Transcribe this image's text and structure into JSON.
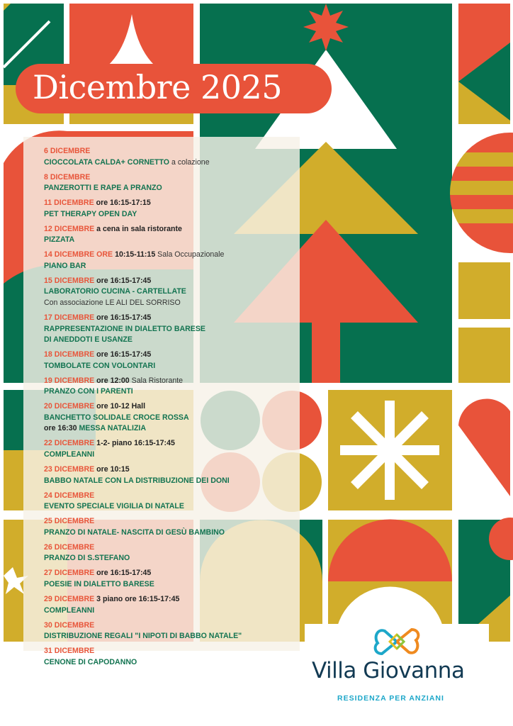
{
  "header": {
    "title": "Dicembre 2025"
  },
  "colors": {
    "green": "#06704f",
    "red": "#e8533a",
    "gold": "#d1ad2b",
    "text_green": "#137451"
  },
  "events": [
    {
      "lines": [
        [
          {
            "t": "6 DICEMBRE",
            "s": "date"
          }
        ],
        [
          {
            "t": "CIOCCOLATA CALDA+ CORNETTO",
            "s": "title"
          },
          {
            "t": " a colazione",
            "s": "light"
          }
        ]
      ]
    },
    {
      "lines": [
        [
          {
            "t": "8 DICEMBRE",
            "s": "date"
          }
        ],
        [
          {
            "t": "PANZEROTTI E RAPE A PRANZO",
            "s": "title"
          }
        ]
      ]
    },
    {
      "lines": [
        [
          {
            "t": "11 DICEMBRE",
            "s": "date"
          },
          {
            "t": " ore 16:15-17:15",
            "s": "bold"
          }
        ],
        [
          {
            "t": "PET THERAPY OPEN DAY",
            "s": "title"
          }
        ]
      ]
    },
    {
      "lines": [
        [
          {
            "t": "12 DICEMBRE",
            "s": "date"
          },
          {
            "t": " a cena in sala ristorante",
            "s": "bold"
          }
        ],
        [
          {
            "t": "PIZZATA",
            "s": "title"
          }
        ]
      ]
    },
    {
      "lines": [
        [
          {
            "t": "14 DICEMBRE ORE",
            "s": "date"
          },
          {
            "t": " 10:15-11:15",
            "s": "bold"
          },
          {
            "t": " Sala Occupazionale",
            "s": "light"
          }
        ],
        [
          {
            "t": "PIANO BAR",
            "s": "title"
          }
        ]
      ]
    },
    {
      "lines": [
        [
          {
            "t": "15 DICEMBRE",
            "s": "date"
          },
          {
            "t": " ore 16:15-17:45",
            "s": "bold"
          }
        ],
        [
          {
            "t": "LABORATORIO CUCINA - CARTELLATE",
            "s": "title"
          }
        ],
        [
          {
            "t": "Con associazione LE ALI DEL SORRISO",
            "s": "light"
          }
        ]
      ]
    },
    {
      "lines": [
        [
          {
            "t": "17 DICEMBRE",
            "s": "date"
          },
          {
            "t": " ore 16:15-17:45",
            "s": "bold"
          }
        ],
        [
          {
            "t": "RAPPRESENTAZIONE IN DIALETTO BARESE",
            "s": "title"
          }
        ],
        [
          {
            "t": "DI ANEDDOTI E USANZE",
            "s": "title"
          }
        ]
      ]
    },
    {
      "lines": [
        [
          {
            "t": "18 DICEMBRE",
            "s": "date"
          },
          {
            "t": " ore 16:15-17:45",
            "s": "bold"
          }
        ],
        [
          {
            "t": "TOMBOLATE CON VOLONTARI",
            "s": "title"
          }
        ]
      ]
    },
    {
      "lines": [
        [
          {
            "t": "19 DICEMBRE",
            "s": "date"
          },
          {
            "t": " ore 12:00",
            "s": "bold"
          },
          {
            "t": " Sala Ristorante",
            "s": "light"
          }
        ],
        [
          {
            "t": "PRANZO CON I PARENTI",
            "s": "title"
          }
        ]
      ]
    },
    {
      "lines": [
        [
          {
            "t": "20 DICEMBRE",
            "s": "date"
          },
          {
            "t": "  ore 10-12 Hall",
            "s": "bold"
          }
        ],
        [
          {
            "t": "BANCHETTO SOLIDALE CROCE ROSSA",
            "s": "title"
          }
        ],
        [
          {
            "t": "ore 16:30",
            "s": "bold"
          },
          {
            "t": " MESSA NATALIZIA",
            "s": "title"
          }
        ]
      ]
    },
    {
      "lines": [
        [
          {
            "t": "22 DICEMBRE",
            "s": "date"
          },
          {
            "t": " 1-2- piano 16:15-17:45",
            "s": "bold"
          }
        ],
        [
          {
            "t": "COMPLEANNI",
            "s": "title"
          }
        ]
      ]
    },
    {
      "lines": [
        [
          {
            "t": "23 DICEMBRE",
            "s": "date"
          },
          {
            "t": " ore 10:15",
            "s": "bold"
          }
        ],
        [
          {
            "t": "BABBO NATALE CON LA DISTRIBUZIONE DEI DONI",
            "s": "title"
          }
        ]
      ]
    },
    {
      "lines": [
        [
          {
            "t": "24 DICEMBRE",
            "s": "date"
          }
        ],
        [
          {
            "t": "EVENTO SPECIALE VIGILIA DI NATALE",
            "s": "title"
          }
        ]
      ]
    },
    {
      "lines": [
        [
          {
            "t": "25 DICEMBRE",
            "s": "date"
          }
        ],
        [
          {
            "t": "PRANZO DI NATALE- NASCITA DI GESÙ BAMBINO",
            "s": "title"
          }
        ]
      ]
    },
    {
      "lines": [
        [
          {
            "t": "26 DICEMBRE",
            "s": "date"
          }
        ],
        [
          {
            "t": "PRANZO DI S.STEFANO",
            "s": "title"
          }
        ]
      ]
    },
    {
      "lines": [
        [
          {
            "t": "27 DICEMBRE",
            "s": "date"
          },
          {
            "t": " ore 16:15-17:45",
            "s": "bold"
          }
        ],
        [
          {
            "t": "POESIE IN DIALETTO BARESE",
            "s": "title"
          }
        ]
      ]
    },
    {
      "lines": [
        [
          {
            "t": "29 DICEMBRE",
            "s": "date"
          },
          {
            "t": " 3 piano ore 16:15-17:45",
            "s": "bold"
          }
        ],
        [
          {
            "t": "COMPLEANNI",
            "s": "title"
          }
        ]
      ]
    },
    {
      "lines": [
        [
          {
            "t": "30 DICEMBRE",
            "s": "date"
          }
        ],
        [
          {
            "t": "DISTRIBUZIONE REGALI \"I NIPOTI DI BABBO NATALE\"",
            "s": "title"
          }
        ]
      ]
    },
    {
      "lines": [
        [
          {
            "t": "31 DICEMBRE",
            "s": "date"
          }
        ],
        [
          {
            "t": "CENONE DI CAPODANNO",
            "s": "title"
          }
        ]
      ]
    }
  ],
  "logo": {
    "name": "Villa Giovanna",
    "subtitle": "RESIDENZA PER ANZIANI",
    "icon": "butterfly-hearts-icon"
  }
}
